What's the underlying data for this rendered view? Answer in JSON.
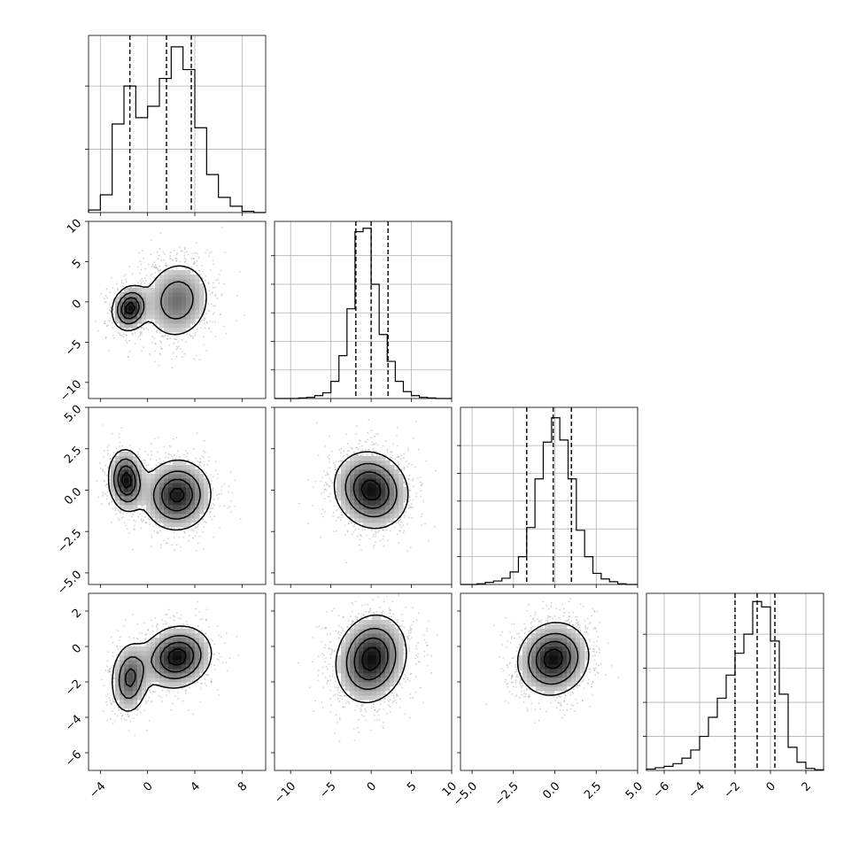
{
  "chart_data": [
    {
      "type": "histogram",
      "variable_index": 0,
      "xlim": [
        -5,
        10
      ],
      "bins": [
        -5,
        -4,
        -3,
        -2,
        -1,
        0,
        1,
        2,
        3,
        4,
        5,
        6,
        7,
        8,
        9,
        10
      ],
      "counts": [
        2,
        14,
        70,
        100,
        75,
        84,
        106,
        131,
        113,
        67,
        30,
        12,
        5,
        1,
        0
      ],
      "ylim": [
        0,
        140
      ],
      "y_ticks": [
        50,
        100
      ],
      "quantiles": [
        -1.5,
        1.6,
        3.7
      ],
      "x_ticks": [
        -4,
        0,
        4,
        8
      ],
      "x_tick_labels": [
        "−4",
        "0",
        "4",
        "8"
      ],
      "grid": true
    },
    {
      "type": "histogram",
      "variable_index": 1,
      "xlim": [
        -12,
        10
      ],
      "bins": [
        -12,
        -11,
        -10,
        -9,
        -8,
        -7,
        -6,
        -5,
        -4,
        -3,
        -2,
        -1,
        0,
        1,
        2,
        3,
        4,
        5,
        6,
        7,
        8,
        9,
        10
      ],
      "counts": [
        0,
        0,
        0,
        1,
        2,
        5,
        10,
        30,
        75,
        157,
        292,
        298,
        200,
        112,
        65,
        30,
        12,
        5,
        2,
        1,
        0,
        0
      ],
      "ylim": [
        0,
        310
      ],
      "y_ticks": [
        50,
        100,
        150,
        200,
        250
      ],
      "quantiles": [
        -1.9,
        0.0,
        2.1
      ],
      "x_ticks": [
        -10,
        -5,
        0,
        5,
        10
      ],
      "x_tick_labels": [
        "−10",
        "−5",
        "0",
        "5",
        "10"
      ],
      "grid": true
    },
    {
      "type": "histogram",
      "variable_index": 2,
      "xlim": [
        -5.7,
        5.0
      ],
      "bins": [
        -5.7,
        -5.2,
        -4.7,
        -4.2,
        -3.7,
        -3.2,
        -2.7,
        -2.2,
        -1.7,
        -1.2,
        -0.7,
        -0.2,
        0.3,
        0.8,
        1.3,
        1.8,
        2.3,
        2.8,
        3.3,
        3.8,
        4.3,
        4.8,
        5.0
      ],
      "counts": [
        0,
        0,
        1,
        3,
        5,
        9,
        18,
        40,
        82,
        152,
        205,
        240,
        208,
        152,
        78,
        40,
        16,
        8,
        4,
        1,
        0,
        0
      ],
      "ylim": [
        0,
        255
      ],
      "y_ticks": [
        40,
        80,
        120,
        160,
        200
      ],
      "quantiles": [
        -1.7,
        -0.1,
        1.0
      ],
      "x_ticks": [
        -5.0,
        -2.5,
        0.0,
        2.5,
        5.0
      ],
      "x_tick_labels": [
        "−5.0",
        "−2.5",
        "0.0",
        "2.5",
        "5.0"
      ],
      "grid": true
    },
    {
      "type": "histogram",
      "variable_index": 3,
      "xlim": [
        -7,
        3
      ],
      "bins": [
        -7,
        -6.5,
        -6,
        -5.5,
        -5,
        -4.5,
        -4,
        -3.5,
        -3,
        -2.5,
        -2,
        -1.5,
        -1,
        -0.5,
        0,
        0.5,
        1,
        1.5,
        2,
        2.5,
        3
      ],
      "counts": [
        2,
        4,
        6,
        10,
        18,
        30,
        50,
        78,
        106,
        140,
        172,
        200,
        248,
        240,
        190,
        112,
        34,
        12,
        3,
        1
      ],
      "ylim": [
        0,
        260
      ],
      "y_ticks": [
        50,
        100,
        150,
        200
      ],
      "quantiles": [
        -2.0,
        -0.75,
        0.25
      ],
      "x_ticks": [
        -6,
        -4,
        -2,
        0,
        2
      ],
      "x_tick_labels": [
        "−6",
        "−4",
        "−2",
        "0",
        "2"
      ],
      "grid": true
    },
    {
      "type": "scatter-contour",
      "x_variable": 0,
      "y_variable": 1,
      "xlim": [
        -5,
        10
      ],
      "ylim": [
        -12,
        10
      ],
      "components": [
        {
          "mean": [
            -1.5,
            -0.8
          ],
          "cov": [
            [
              0.6,
              0.15
            ],
            [
              0.15,
              2.0
            ]
          ],
          "weight": 0.32
        },
        {
          "mean": [
            2.5,
            0.2
          ],
          "cov": [
            [
              2.2,
              0.3
            ],
            [
              0.3,
              6.5
            ]
          ],
          "weight": 0.68
        }
      ],
      "y_ticks": [
        -10,
        -5,
        0,
        5,
        10
      ],
      "y_tick_labels": [
        "−10",
        "−5",
        "0",
        "5",
        "10"
      ]
    },
    {
      "type": "scatter-contour",
      "x_variable": 0,
      "y_variable": 2,
      "xlim": [
        -5,
        10
      ],
      "ylim": [
        -5.7,
        5.0
      ],
      "components": [
        {
          "mean": [
            -1.8,
            0.6
          ],
          "cov": [
            [
              0.6,
              -0.05
            ],
            [
              -0.05,
              0.9
            ]
          ],
          "weight": 0.32
        },
        {
          "mean": [
            2.5,
            -0.3
          ],
          "cov": [
            [
              2.2,
              0.05
            ],
            [
              0.05,
              1.2
            ]
          ],
          "weight": 0.68
        }
      ],
      "y_ticks": [
        -5.0,
        -2.5,
        0.0,
        2.5,
        5.0
      ],
      "y_tick_labels": [
        "−5.0",
        "−2.5",
        "0.0",
        "2.5",
        "5.0"
      ]
    },
    {
      "type": "scatter-contour",
      "x_variable": 0,
      "y_variable": 3,
      "xlim": [
        -5,
        10
      ],
      "ylim": [
        -7,
        3
      ],
      "components": [
        {
          "mean": [
            -1.5,
            -1.8
          ],
          "cov": [
            [
              0.7,
              0.1
            ],
            [
              0.1,
              1.1
            ]
          ],
          "weight": 0.32
        },
        {
          "mean": [
            2.5,
            -0.6
          ],
          "cov": [
            [
              2.2,
              0.15
            ],
            [
              0.15,
              0.8
            ]
          ],
          "weight": 0.68
        }
      ],
      "y_ticks": [
        -6,
        -4,
        -2,
        0,
        2
      ],
      "y_tick_labels": [
        "−6",
        "−4",
        "−2",
        "0",
        "2"
      ]
    },
    {
      "type": "scatter-contour",
      "x_variable": 1,
      "y_variable": 2,
      "xlim": [
        -12,
        10
      ],
      "ylim": [
        -5.7,
        5.0
      ],
      "components": [
        {
          "mean": [
            0.0,
            0.0
          ],
          "cov": [
            [
              5.5,
              -0.3
            ],
            [
              -0.3,
              1.4
            ]
          ],
          "weight": 1.0
        }
      ]
    },
    {
      "type": "scatter-contour",
      "x_variable": 1,
      "y_variable": 3,
      "xlim": [
        -12,
        10
      ],
      "ylim": [
        -7,
        3
      ],
      "components": [
        {
          "mean": [
            0.0,
            -0.7
          ],
          "cov": [
            [
              5.0,
              0.4
            ],
            [
              0.4,
              1.6
            ]
          ],
          "weight": 1.0
        }
      ]
    },
    {
      "type": "scatter-contour",
      "x_variable": 2,
      "y_variable": 3,
      "xlim": [
        -5.7,
        5.0
      ],
      "ylim": [
        -7,
        3
      ],
      "components": [
        {
          "mean": [
            -0.1,
            -0.7
          ],
          "cov": [
            [
              1.2,
              0.1
            ],
            [
              0.1,
              1.1
            ]
          ],
          "weight": 1.0
        }
      ]
    }
  ]
}
